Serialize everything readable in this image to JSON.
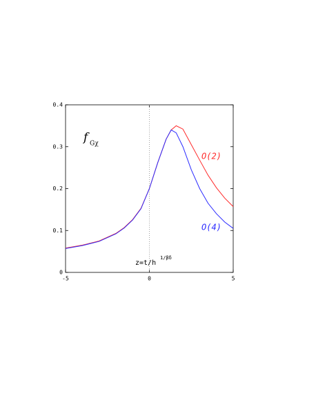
{
  "chart_data": {
    "type": "line",
    "ylabel": "f",
    "ylabel_sub": "Gχ",
    "xlabel": "z=t/h",
    "xlabel_sup": "1/βδ",
    "x": [
      -5,
      -4,
      -3,
      -2,
      -1.5,
      -1,
      -0.5,
      0,
      0.5,
      1,
      1.3,
      1.6,
      2,
      2.5,
      3,
      3.5,
      4,
      4.5,
      5
    ],
    "series": [
      {
        "name": "O(2)",
        "color": "#ff2a2a",
        "values": [
          0.058,
          0.065,
          0.075,
          0.093,
          0.107,
          0.126,
          0.153,
          0.2,
          0.262,
          0.318,
          0.34,
          0.35,
          0.342,
          0.305,
          0.268,
          0.232,
          0.202,
          0.177,
          0.157
        ]
      },
      {
        "name": "O(4)",
        "color": "#2a2aff",
        "values": [
          0.057,
          0.064,
          0.074,
          0.092,
          0.106,
          0.125,
          0.152,
          0.2,
          0.262,
          0.318,
          0.34,
          0.333,
          0.3,
          0.245,
          0.2,
          0.165,
          0.14,
          0.12,
          0.105
        ]
      }
    ],
    "xlim": [
      -5,
      5
    ],
    "ylim": [
      0,
      0.4
    ],
    "xticks": [
      -5,
      0,
      5
    ],
    "yticks": [
      0,
      0.1,
      0.2,
      0.3,
      0.4
    ],
    "vline": 0
  }
}
